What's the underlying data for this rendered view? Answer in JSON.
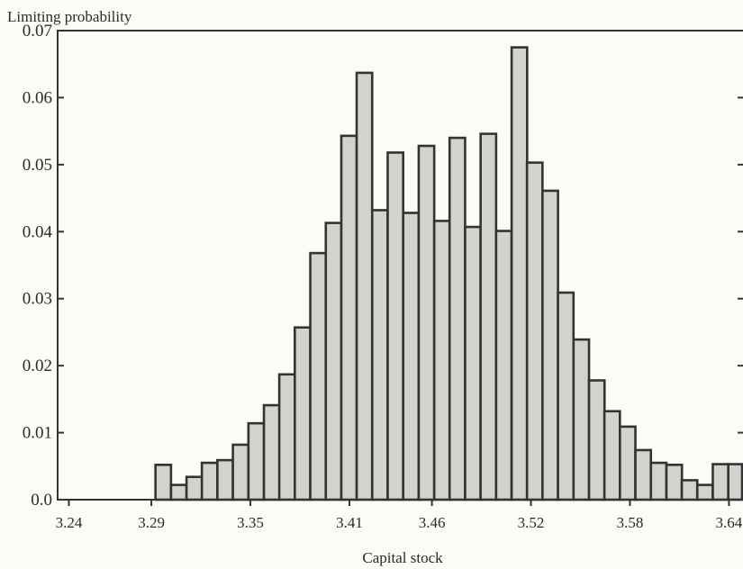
{
  "chart_data": {
    "type": "bar",
    "title": "",
    "ylabel": "Limiting probability",
    "xlabel": "Capital stock",
    "xlim": [
      3.2332,
      3.6485
    ],
    "ylim": [
      0.0,
      0.07
    ],
    "x_ticks": [
      "3.24",
      "3.29",
      "3.35",
      "3.41",
      "3.46",
      "3.52",
      "3.58",
      "3.64"
    ],
    "x_tick_values": [
      3.24,
      3.29,
      3.35,
      3.41,
      3.46,
      3.52,
      3.58,
      3.64
    ],
    "y_ticks": [
      "0.0",
      "0.01",
      "0.02",
      "0.03",
      "0.04",
      "0.05",
      "0.06",
      "0.07"
    ],
    "y_tick_values": [
      0.0,
      0.01,
      0.02,
      0.03,
      0.04,
      0.05,
      0.06,
      0.07
    ],
    "bin_width": 0.0094,
    "bar_color": "#d3d2cc",
    "bar_edge_color": "#333333",
    "grid": false,
    "x": [
      3.2972,
      3.3066,
      3.316,
      3.3253,
      3.3347,
      3.3441,
      3.3535,
      3.3629,
      3.3722,
      3.3816,
      3.391,
      3.4004,
      3.4098,
      3.4191,
      3.4285,
      3.4379,
      3.4473,
      3.4567,
      3.4661,
      3.4754,
      3.4848,
      3.4942,
      3.5036,
      3.513,
      3.5223,
      3.5317,
      3.5411,
      3.5505,
      3.5599,
      3.5692,
      3.5786,
      3.588,
      3.5974,
      3.6068,
      3.6161,
      3.6255,
      3.6349,
      3.6443
    ],
    "values": [
      0.0052,
      0.0022,
      0.0034,
      0.0055,
      0.0059,
      0.0082,
      0.0114,
      0.0141,
      0.0187,
      0.0257,
      0.0368,
      0.0413,
      0.0543,
      0.0637,
      0.0432,
      0.0518,
      0.0428,
      0.0528,
      0.0416,
      0.054,
      0.0407,
      0.0546,
      0.0401,
      0.0675,
      0.0503,
      0.0461,
      0.0309,
      0.0239,
      0.0178,
      0.0132,
      0.0109,
      0.0074,
      0.0055,
      0.0052,
      0.0029,
      0.0022,
      0.0053,
      0.0053
    ]
  }
}
